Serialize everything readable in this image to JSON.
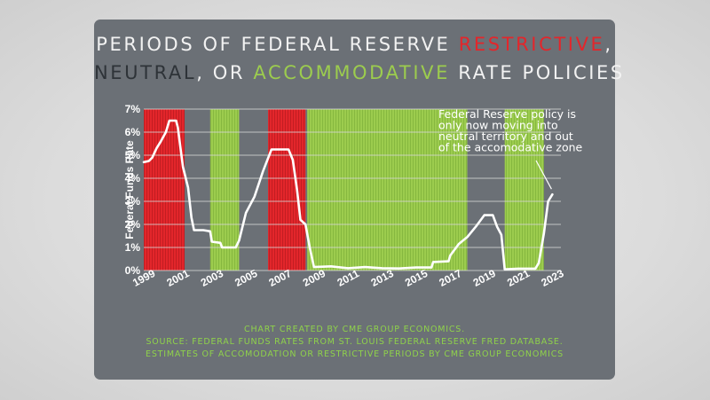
{
  "title": {
    "line1_prefix": "PERIODS OF FEDERAL RESERVE ",
    "restrictive": "RESTRICTIVE",
    "line1_suffix": ",",
    "neutral": "NEUTRAL",
    "line2_middle": ", OR ",
    "accommodative": "ACCOMMODATIVE",
    "line2_suffix": " RATE POLICIES"
  },
  "footer": {
    "line1": "CHART CREATED BY CME GROUP ECONOMICS.",
    "line2": "SOURCE: FEDERAL FUNDS RATES FROM ST. LOUIS FEDERAL RESERVE FRED DATABASE.",
    "line3": "ESTIMATES OF ACCOMODATION OR RESTRICTIVE PERIODS BY CME GROUP ECONOMICS"
  },
  "colors": {
    "card": "#6b7076",
    "restrictive": "#e3262b",
    "neutral": "#2e3338",
    "accommodative": "#9ccc4e",
    "line": "#ffffff"
  },
  "chart_data": {
    "type": "line",
    "ylabel": "Federal Funds Rate",
    "xlabel": "",
    "xlim": [
      1999,
      2023.5
    ],
    "ylim": [
      0,
      7
    ],
    "x_ticks": [
      "1999",
      "2001",
      "2003",
      "2005",
      "2007",
      "2009",
      "2011",
      "2013",
      "2015",
      "2017",
      "2019",
      "2021",
      "2023"
    ],
    "y_ticks": [
      "0%",
      "1%",
      "2%",
      "3%",
      "4%",
      "5%",
      "6%",
      "7%"
    ],
    "grid": true,
    "periods": [
      {
        "type": "restrictive",
        "start": 1999.0,
        "end": 2001.4
      },
      {
        "type": "accommodative",
        "start": 2002.9,
        "end": 2004.6
      },
      {
        "type": "restrictive",
        "start": 2006.3,
        "end": 2008.5
      },
      {
        "type": "accommodative",
        "start": 2008.6,
        "end": 2018.0
      },
      {
        "type": "accommodative",
        "start": 2020.2,
        "end": 2022.5
      }
    ],
    "series": [
      {
        "points": [
          [
            1999.0,
            4.7
          ],
          [
            1999.3,
            4.75
          ],
          [
            1999.5,
            4.9
          ],
          [
            1999.75,
            5.3
          ],
          [
            2000.0,
            5.6
          ],
          [
            2000.3,
            6.0
          ],
          [
            2000.5,
            6.5
          ],
          [
            2000.9,
            6.5
          ],
          [
            2001.0,
            6.2
          ],
          [
            2001.3,
            4.5
          ],
          [
            2001.6,
            3.6
          ],
          [
            2001.8,
            2.3
          ],
          [
            2001.95,
            1.75
          ],
          [
            2002.5,
            1.75
          ],
          [
            2002.9,
            1.7
          ],
          [
            2003.0,
            1.25
          ],
          [
            2003.5,
            1.2
          ],
          [
            2003.6,
            1.0
          ],
          [
            2004.4,
            1.0
          ],
          [
            2004.6,
            1.3
          ],
          [
            2005.0,
            2.5
          ],
          [
            2005.5,
            3.2
          ],
          [
            2006.0,
            4.3
          ],
          [
            2006.5,
            5.25
          ],
          [
            2007.5,
            5.25
          ],
          [
            2007.75,
            4.8
          ],
          [
            2008.0,
            3.5
          ],
          [
            2008.2,
            2.2
          ],
          [
            2008.5,
            2.0
          ],
          [
            2008.75,
            1.0
          ],
          [
            2009.0,
            0.15
          ],
          [
            2010.0,
            0.18
          ],
          [
            2011.0,
            0.1
          ],
          [
            2012.0,
            0.15
          ],
          [
            2013.0,
            0.1
          ],
          [
            2014.0,
            0.09
          ],
          [
            2015.0,
            0.13
          ],
          [
            2015.9,
            0.13
          ],
          [
            2016.0,
            0.37
          ],
          [
            2016.9,
            0.4
          ],
          [
            2017.0,
            0.65
          ],
          [
            2017.5,
            1.15
          ],
          [
            2018.0,
            1.45
          ],
          [
            2018.5,
            1.9
          ],
          [
            2019.0,
            2.4
          ],
          [
            2019.5,
            2.4
          ],
          [
            2019.75,
            1.9
          ],
          [
            2020.0,
            1.55
          ],
          [
            2020.2,
            0.05
          ],
          [
            2021.0,
            0.08
          ],
          [
            2022.0,
            0.08
          ],
          [
            2022.2,
            0.33
          ],
          [
            2022.5,
            1.6
          ],
          [
            2022.75,
            3.0
          ],
          [
            2023.0,
            3.3
          ]
        ]
      }
    ],
    "annotations": [
      {
        "lines": [
          "Federal Reserve policy is",
          "only now moving into",
          "neutral territory and out",
          "of the accomodative zone"
        ],
        "points_to": [
          2023.0,
          3.3
        ]
      }
    ]
  }
}
